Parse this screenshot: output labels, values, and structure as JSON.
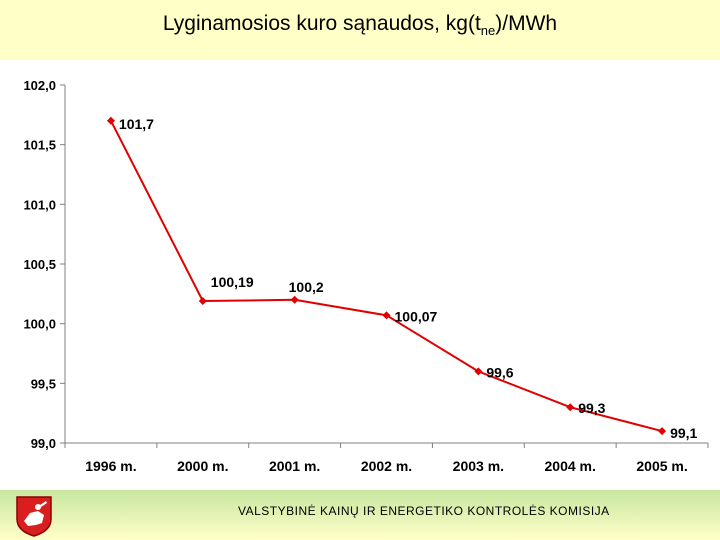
{
  "title": {
    "main": "Lyginamosios kuro sąnaudos, kg(t",
    "sub": "ne",
    "suffix": ")/MWh"
  },
  "chart_data": {
    "type": "line",
    "categories": [
      "1996 m.",
      "2000 m.",
      "2001 m.",
      "2002 m.",
      "2003 m.",
      "2004 m.",
      "2005 m."
    ],
    "values": [
      101.7,
      100.19,
      100.2,
      100.07,
      99.6,
      99.3,
      99.1
    ],
    "data_labels": [
      "101,7",
      "100,19",
      "100,2",
      "100,07",
      "99,6",
      "99,3",
      "99,1"
    ],
    "yticks": [
      "99,0",
      "99,5",
      "100,0",
      "100,5",
      "101,0",
      "101,5",
      "102,0"
    ],
    "ytick_values": [
      99.0,
      99.5,
      100.0,
      100.5,
      101.0,
      101.5,
      102.0
    ],
    "ylim": [
      99.0,
      102.0
    ],
    "series_color": "#e00000",
    "xlabel": "",
    "ylabel": "",
    "grid": false
  },
  "footer": {
    "organization": "VALSTYBINĖ KAINŲ IR ENERGETIKO KONTROLĖS KOMISIJA"
  },
  "colors": {
    "background": "#ffffc8",
    "chart_bg": "#ffffff",
    "footer_green": "#c8e6a0"
  }
}
